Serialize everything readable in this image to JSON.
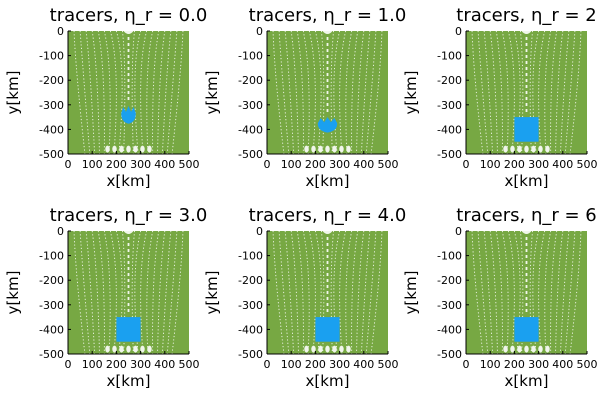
{
  "colors": {
    "background_tracers": "#77a843",
    "anomaly_tracers": "#1aa0f0",
    "gap": "#ffffff",
    "axis": "#000000"
  },
  "chart_data": [
    {
      "type": "scatter",
      "title": "tracers, η_r = 0.0",
      "xlabel": "x[km]",
      "ylabel": "y[km]",
      "xlim": [
        0,
        500
      ],
      "ylim": [
        -500,
        0
      ],
      "xticks": [
        "0",
        "100",
        "200",
        "300",
        "400",
        "500"
      ],
      "yticks": [
        "0",
        "-100",
        "-200",
        "-300",
        "-400",
        "-500"
      ],
      "series": [
        {
          "name": "background tracers",
          "color": "#77a843",
          "region": {
            "x": [
              0,
              500
            ],
            "y": [
              -500,
              0
            ]
          }
        },
        {
          "name": "anomaly tracers",
          "color": "#1aa0f0",
          "shape": "blob",
          "center": [
            250,
            -345
          ],
          "size": [
            60,
            80
          ]
        }
      ]
    },
    {
      "type": "scatter",
      "title": "tracers, η_r = 1.0",
      "xlabel": "x[km]",
      "ylabel": "y[km]",
      "xlim": [
        0,
        500
      ],
      "ylim": [
        -500,
        0
      ],
      "xticks": [
        "0",
        "100",
        "200",
        "300",
        "400",
        "500"
      ],
      "yticks": [
        "0",
        "-100",
        "-200",
        "-300",
        "-400",
        "-500"
      ],
      "series": [
        {
          "name": "background tracers",
          "color": "#77a843",
          "region": {
            "x": [
              0,
              500
            ],
            "y": [
              -500,
              0
            ]
          }
        },
        {
          "name": "anomaly tracers",
          "color": "#1aa0f0",
          "shape": "blob",
          "center": [
            250,
            -385
          ],
          "size": [
            80,
            70
          ]
        }
      ]
    },
    {
      "type": "scatter",
      "title": "tracers, η_r = 2",
      "xlabel": "x[km]",
      "ylabel": "y[km]",
      "xlim": [
        0,
        500
      ],
      "ylim": [
        -500,
        0
      ],
      "xticks": [
        "0",
        "100",
        "200",
        "300",
        "400",
        "500"
      ],
      "yticks": [
        "0",
        "-100",
        "-200",
        "-300",
        "-400",
        "-500"
      ],
      "series": [
        {
          "name": "background tracers",
          "color": "#77a843",
          "region": {
            "x": [
              0,
              500
            ],
            "y": [
              -500,
              0
            ]
          }
        },
        {
          "name": "anomaly tracers",
          "color": "#1aa0f0",
          "shape": "square",
          "center": [
            250,
            -400
          ],
          "size": [
            100,
            100
          ]
        }
      ]
    },
    {
      "type": "scatter",
      "title": "tracers, η_r = 3.0",
      "xlabel": "x[km]",
      "ylabel": "y[km]",
      "xlim": [
        0,
        500
      ],
      "ylim": [
        -500,
        0
      ],
      "xticks": [
        "0",
        "100",
        "200",
        "300",
        "400",
        "500"
      ],
      "yticks": [
        "0",
        "-100",
        "-200",
        "-300",
        "-400",
        "-500"
      ],
      "series": [
        {
          "name": "background tracers",
          "color": "#77a843",
          "region": {
            "x": [
              0,
              500
            ],
            "y": [
              -500,
              0
            ]
          }
        },
        {
          "name": "anomaly tracers",
          "color": "#1aa0f0",
          "shape": "square",
          "center": [
            250,
            -400
          ],
          "size": [
            100,
            100
          ]
        }
      ]
    },
    {
      "type": "scatter",
      "title": "tracers, η_r = 4.0",
      "xlabel": "x[km]",
      "ylabel": "y[km]",
      "xlim": [
        0,
        500
      ],
      "ylim": [
        -500,
        0
      ],
      "xticks": [
        "0",
        "100",
        "200",
        "300",
        "400",
        "500"
      ],
      "yticks": [
        "0",
        "-100",
        "-200",
        "-300",
        "-400",
        "-500"
      ],
      "series": [
        {
          "name": "background tracers",
          "color": "#77a843",
          "region": {
            "x": [
              0,
              500
            ],
            "y": [
              -500,
              0
            ]
          }
        },
        {
          "name": "anomaly tracers",
          "color": "#1aa0f0",
          "shape": "square",
          "center": [
            250,
            -400
          ],
          "size": [
            100,
            100
          ]
        }
      ]
    },
    {
      "type": "scatter",
      "title": "tracers, η_r = 6",
      "xlabel": "x[km]",
      "ylabel": "y[km]",
      "xlim": [
        0,
        500
      ],
      "ylim": [
        -500,
        0
      ],
      "xticks": [
        "0",
        "100",
        "200",
        "300",
        "400",
        "500"
      ],
      "yticks": [
        "0",
        "-100",
        "-200",
        "-300",
        "-400",
        "-500"
      ],
      "series": [
        {
          "name": "background tracers",
          "color": "#77a843",
          "region": {
            "x": [
              0,
              500
            ],
            "y": [
              -500,
              0
            ]
          }
        },
        {
          "name": "anomaly tracers",
          "color": "#1aa0f0",
          "shape": "square",
          "center": [
            250,
            -400
          ],
          "size": [
            100,
            100
          ]
        }
      ]
    }
  ]
}
